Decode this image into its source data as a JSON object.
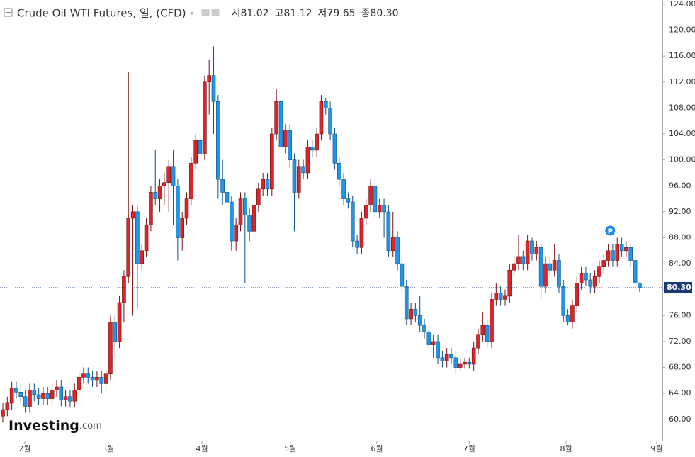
{
  "chart_data": {
    "type": "candlestick",
    "title": "Crude Oil WTI Futures, 일, (CFD)",
    "header": [
      {
        "prefix": "시",
        "value": 81.02
      },
      {
        "prefix": "고",
        "value": 81.12
      },
      {
        "prefix": "저",
        "value": 79.65
      },
      {
        "prefix": "종",
        "value": {
          "value": 80.3,
          "label": "80.30"
        }
      }
    ],
    "open": [
      60.5,
      61.5,
      62.5,
      64.8,
      64.2,
      63.5,
      62.0,
      64.5,
      63.8,
      63.2,
      64.0,
      63.2,
      64.5,
      65.0,
      63.0,
      63.5,
      62.8,
      64.5,
      66.5,
      67.0,
      66.5,
      66.0,
      66.5,
      65.5,
      67.0,
      75.0,
      72.0,
      78.0,
      82.0,
      91.0,
      92.0,
      84.0,
      86.0,
      90.0,
      95.0,
      94.0,
      96.0,
      96.5,
      99.0,
      96.0,
      88.0,
      91.0,
      94.0,
      99.5,
      103.0,
      101.0,
      112.0,
      113.0,
      109.0,
      97.0,
      95.0,
      93.5,
      87.5,
      90.0,
      94.0,
      91.5,
      89.0,
      93.0,
      95.5,
      97.0,
      95.5,
      104.0,
      109.0,
      102.0,
      104.5,
      100.0,
      95.0,
      99.0,
      98.0,
      102.0,
      101.5,
      104.0,
      109.0,
      108.0,
      104.0,
      99.5,
      97.0,
      94.0,
      93.5,
      87.5,
      86.5,
      91.0,
      93.0,
      96.0,
      92.0,
      93.0,
      92.0,
      86.0,
      88.0,
      84.0,
      80.5,
      75.5,
      77.0,
      76.0,
      74.5,
      73.5,
      71.5,
      72.0,
      69.5,
      69.0,
      70.0,
      69.5,
      68.0,
      68.5,
      68.8,
      68.5,
      71.0,
      73.0,
      74.5,
      72.0,
      78.5,
      79.5,
      78.5,
      79.0,
      83.0,
      84.0,
      85.0,
      84.0,
      87.5,
      85.5,
      86.5,
      80.5,
      84.0,
      83.0,
      84.5,
      80.5,
      76.0,
      75.0,
      77.5,
      81.0,
      82.5,
      81.5,
      80.5,
      82.0,
      83.5,
      84.5,
      86.0,
      84.5,
      87.0,
      86.0,
      86.5,
      84.5,
      81.02
    ],
    "high": [
      62.5,
      63.5,
      65.8,
      65.8,
      65.2,
      64.5,
      65.5,
      65.5,
      64.8,
      65.0,
      65.0,
      65.5,
      66.0,
      66.0,
      64.5,
      64.5,
      65.5,
      67.5,
      68.0,
      68.0,
      67.5,
      67.5,
      67.5,
      68.0,
      76.0,
      76.0,
      79.0,
      83.0,
      113.5,
      93.0,
      93.0,
      87.0,
      91.0,
      96.0,
      101.5,
      97.0,
      98.0,
      100.0,
      101.5,
      97.0,
      92.0,
      95.0,
      100.5,
      104.0,
      104.5,
      113.0,
      115.5,
      117.5,
      110.0,
      100.0,
      96.0,
      94.5,
      91.0,
      95.0,
      95.0,
      92.5,
      94.0,
      96.5,
      98.0,
      98.0,
      105.0,
      111.0,
      110.0,
      105.5,
      105.5,
      101.0,
      100.0,
      100.0,
      103.0,
      103.0,
      105.0,
      110.0,
      109.5,
      109.0,
      105.0,
      100.5,
      98.0,
      95.0,
      94.5,
      88.5,
      92.0,
      94.0,
      97.0,
      97.0,
      94.0,
      94.0,
      93.0,
      92.0,
      89.0,
      85.0,
      81.5,
      78.0,
      78.0,
      79.0,
      75.5,
      74.5,
      73.0,
      73.0,
      70.5,
      71.0,
      71.0,
      70.5,
      69.5,
      69.5,
      69.5,
      72.0,
      74.0,
      76.5,
      75.5,
      79.5,
      81.0,
      80.5,
      80.0,
      84.0,
      85.0,
      88.5,
      86.0,
      88.5,
      88.0,
      87.5,
      87.0,
      85.0,
      85.0,
      87.0,
      85.5,
      81.5,
      77.0,
      78.5,
      82.0,
      83.5,
      83.5,
      82.5,
      83.0,
      84.5,
      85.5,
      87.0,
      87.0,
      88.0,
      88.0,
      87.5,
      87.0,
      85.5,
      81.12
    ],
    "low": [
      59.5,
      60.5,
      61.5,
      63.2,
      62.5,
      61.0,
      61.0,
      62.8,
      62.2,
      62.2,
      62.2,
      62.2,
      63.5,
      62.0,
      62.0,
      61.8,
      61.8,
      63.5,
      65.5,
      65.5,
      65.0,
      65.0,
      64.0,
      64.5,
      66.0,
      69.5,
      71.0,
      75.0,
      81.0,
      76.0,
      77.0,
      83.0,
      85.0,
      89.0,
      93.0,
      92.0,
      93.0,
      92.0,
      90.0,
      84.5,
      86.0,
      90.0,
      93.0,
      98.5,
      99.0,
      100.0,
      107.0,
      104.0,
      94.0,
      93.0,
      91.5,
      86.0,
      86.0,
      89.0,
      81.0,
      87.5,
      88.0,
      92.0,
      94.5,
      94.5,
      94.5,
      103.0,
      101.0,
      101.0,
      99.0,
      89.0,
      94.0,
      97.0,
      97.0,
      100.5,
      100.5,
      103.0,
      107.0,
      103.0,
      98.5,
      96.0,
      93.0,
      92.5,
      86.5,
      85.5,
      85.5,
      90.0,
      92.0,
      91.0,
      91.0,
      88.0,
      85.0,
      85.0,
      83.0,
      79.5,
      74.5,
      74.5,
      75.0,
      73.5,
      72.5,
      70.5,
      69.5,
      68.5,
      68.0,
      68.0,
      68.5,
      67.0,
      67.5,
      67.8,
      67.8,
      67.5,
      70.0,
      72.0,
      71.0,
      71.0,
      77.5,
      77.5,
      77.5,
      78.0,
      82.0,
      83.0,
      83.0,
      83.0,
      84.5,
      84.5,
      78.5,
      79.5,
      82.0,
      82.0,
      79.5,
      75.0,
      74.5,
      74.0,
      76.5,
      80.0,
      80.5,
      79.5,
      79.5,
      81.0,
      82.5,
      83.5,
      83.5,
      83.5,
      85.0,
      85.0,
      83.5,
      80.0,
      79.65
    ],
    "close": [
      61.5,
      62.5,
      64.8,
      64.2,
      63.5,
      62.0,
      64.5,
      63.8,
      63.2,
      64.0,
      63.2,
      64.5,
      65.0,
      63.0,
      63.5,
      62.8,
      64.5,
      66.5,
      67.0,
      66.5,
      66.0,
      66.5,
      65.5,
      67.0,
      75.0,
      72.0,
      78.0,
      82.0,
      91.0,
      92.0,
      84.0,
      86.0,
      90.0,
      95.0,
      94.0,
      96.0,
      96.5,
      99.0,
      96.0,
      88.0,
      91.0,
      94.0,
      99.5,
      103.0,
      101.0,
      112.0,
      113.0,
      109.0,
      97.0,
      95.0,
      93.5,
      87.5,
      90.0,
      94.0,
      91.5,
      89.0,
      93.0,
      95.5,
      97.0,
      95.5,
      104.0,
      109.0,
      102.0,
      104.5,
      100.0,
      95.0,
      99.0,
      98.0,
      102.0,
      101.5,
      104.0,
      109.0,
      108.0,
      104.0,
      99.5,
      97.0,
      94.0,
      93.5,
      87.5,
      86.5,
      91.0,
      93.0,
      96.0,
      92.0,
      93.0,
      92.0,
      86.0,
      88.0,
      84.0,
      80.5,
      75.5,
      77.0,
      76.0,
      74.5,
      73.5,
      71.5,
      72.0,
      69.5,
      69.0,
      70.0,
      69.5,
      68.0,
      68.5,
      68.8,
      68.5,
      71.0,
      73.0,
      74.5,
      72.0,
      78.5,
      79.5,
      78.5,
      79.0,
      83.0,
      84.0,
      85.0,
      84.0,
      87.5,
      85.5,
      86.5,
      80.5,
      84.0,
      83.0,
      84.5,
      80.5,
      76.0,
      75.0,
      77.5,
      81.0,
      82.5,
      81.5,
      80.5,
      82.0,
      83.5,
      84.5,
      86.0,
      84.5,
      87.0,
      86.0,
      86.5,
      84.5,
      81.02,
      80.3
    ],
    "up_color": "#d9262b",
    "down_color": "#2196e8",
    "xlim": [
      -0.63,
      147.07
    ],
    "xticks": [
      {
        "value": 4.9,
        "label": "2월"
      },
      {
        "value": 23.5,
        "label": "3월"
      },
      {
        "value": 44.4,
        "label": "4월"
      },
      {
        "value": 64.1,
        "label": "5월"
      },
      {
        "value": 83.4,
        "label": "6월"
      },
      {
        "value": 104.0,
        "label": "7월"
      },
      {
        "value": 125.6,
        "label": "8월"
      },
      {
        "value": 145.8,
        "label": "9월"
      }
    ],
    "ylim": [
      56.7,
      124.65
    ],
    "yticks": [
      {
        "value": 60,
        "label": "60.00"
      },
      {
        "value": 64,
        "label": "64.00"
      },
      {
        "value": 68,
        "label": "68.00"
      },
      {
        "value": 72,
        "label": "72.00"
      },
      {
        "value": 76,
        "label": "76.00"
      },
      {
        "value": 80,
        "label": "80.00"
      },
      {
        "value": 84,
        "label": "84.00"
      },
      {
        "value": 88,
        "label": "88.00"
      },
      {
        "value": 92,
        "label": "92.00"
      },
      {
        "value": 96,
        "label": "96.00"
      },
      {
        "value": 100,
        "label": "100.00"
      },
      {
        "value": 104,
        "label": "104.00"
      },
      {
        "value": 108,
        "label": "108.00"
      },
      {
        "value": 112,
        "label": "112.00"
      },
      {
        "value": 116,
        "label": "116.00"
      },
      {
        "value": 120,
        "label": "120.00"
      },
      {
        "value": 124,
        "label": "124.00"
      }
    ],
    "last_price": {
      "value": 80.3,
      "label": "80.30"
    },
    "marker": {
      "index": 137,
      "label": "P"
    },
    "logo": {
      "name": "Investing",
      "suffix": ".com"
    }
  }
}
